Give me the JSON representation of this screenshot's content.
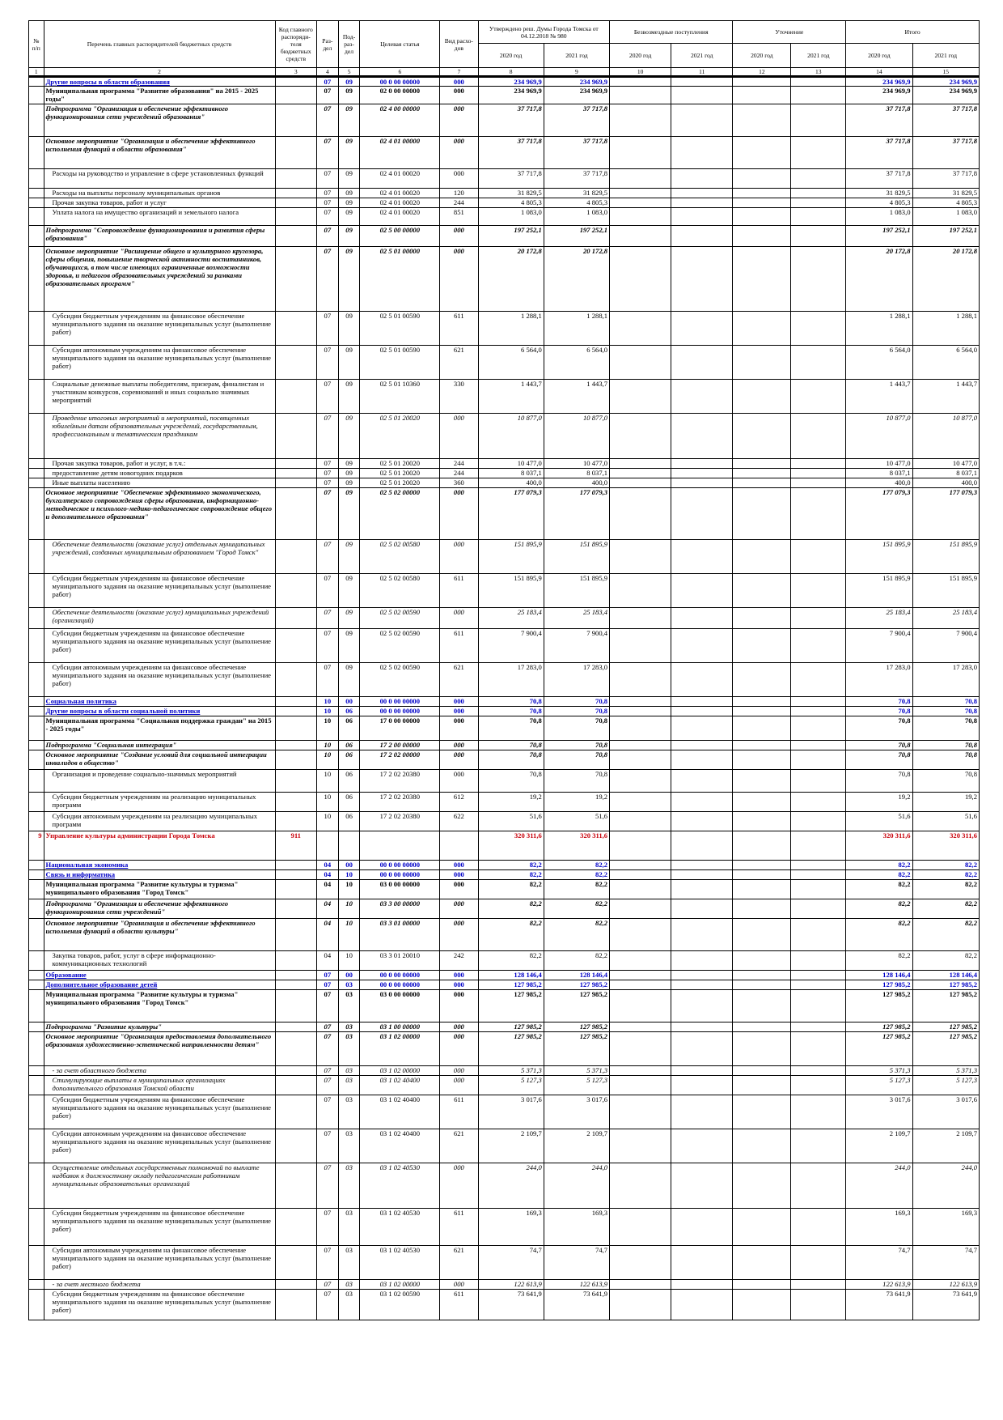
{
  "header": {
    "no": "№ п/п",
    "name": "Перечень главных распорядителей бюджетных средств",
    "code": "Код главного распоряди-теля бюджетных средств",
    "razdel": "Раз-дел",
    "podrazdel": "Под-раз-дел",
    "csr": "Целевая статья",
    "vr": "Вид расхо-дов",
    "approved": "Утверждено реш. Думы Города Томска от 04.12.2018 № 980",
    "free": "Безвозмездные поступления",
    "refine": "Уточнение",
    "total": "Итого",
    "y2020": "2020 год",
    "y2021": "2021 год",
    "colnums": [
      "1",
      "2",
      "3",
      "4",
      "5",
      "6",
      "7",
      "8",
      "9",
      "10",
      "11",
      "12",
      "13",
      "14",
      "15"
    ]
  },
  "rows": [
    {
      "s": "blue",
      "n": "",
      "name": "Другие вопросы в области образования",
      "code": "",
      "rz": "07",
      "pr": "09",
      "cs": "00 0 00 00000",
      "vr": "000",
      "a20": "234 969,9",
      "a21": "234 969,9",
      "t20": "234 969,9",
      "t21": "234 969,9",
      "h": 12
    },
    {
      "s": "b",
      "n": "",
      "name": "Муниципальная программа \"Развитие образования\" на 2015 - 2025 годы\"",
      "code": "",
      "rz": "07",
      "pr": "09",
      "cs": "02 0 00 00000",
      "vr": "000",
      "a20": "234 969,9",
      "a21": "234 969,9",
      "t20": "234 969,9",
      "t21": "234 969,9",
      "h": 22
    },
    {
      "s": "bi",
      "n": "",
      "name": "Подпрограмма \"Организация и обеспечение эффективного функционирования сети учреждений образования\"",
      "code": "",
      "rz": "07",
      "pr": "09",
      "cs": "02 4 00 00000",
      "vr": "000",
      "a20": "37 717,8",
      "a21": "37 717,8",
      "t20": "37 717,8",
      "t21": "37 717,8",
      "h": 40
    },
    {
      "s": "bi",
      "n": "",
      "name": "Основное мероприятие \"Организация и обеспечение эффективного исполнения функций в области образования\"",
      "code": "",
      "rz": "07",
      "pr": "09",
      "cs": "02 4 01 00000",
      "vr": "000",
      "a20": "37 717,8",
      "a21": "37 717,8",
      "t20": "37 717,8",
      "t21": "37 717,8",
      "h": 40
    },
    {
      "s": "",
      "n": "",
      "name": "Расходы на руководство и управление в сфере установленных функций",
      "code": "",
      "rz": "07",
      "pr": "09",
      "cs": "02 4 01 00020",
      "vr": "000",
      "a20": "37 717,8",
      "a21": "37 717,8",
      "t20": "37 717,8",
      "t21": "37 717,8",
      "h": 24
    },
    {
      "s": "",
      "n": "",
      "name": "Расходы на выплаты персоналу муниципальных органов",
      "code": "",
      "rz": "07",
      "pr": "09",
      "cs": "02 4 01 00020",
      "vr": "120",
      "a20": "31 829,5",
      "a21": "31 829,5",
      "t20": "31 829,5",
      "t21": "31 829,5",
      "h": 12
    },
    {
      "s": "",
      "n": "",
      "name": "Прочая закупка товаров, работ и услуг",
      "code": "",
      "rz": "07",
      "pr": "09",
      "cs": "02 4 01 00020",
      "vr": "244",
      "a20": "4 805,3",
      "a21": "4 805,3",
      "t20": "4 805,3",
      "t21": "4 805,3",
      "h": 12
    },
    {
      "s": "",
      "n": "",
      "name": "Уплата налога на имущество организаций и земельного налога",
      "code": "",
      "rz": "07",
      "pr": "09",
      "cs": "02 4 01 00020",
      "vr": "851",
      "a20": "1 083,0",
      "a21": "1 083,0",
      "t20": "1 083,0",
      "t21": "1 083,0",
      "h": 22
    },
    {
      "s": "bi",
      "n": "",
      "name": "Подпрограмма \"Сопровождение функционирования и развития сферы образования\"",
      "code": "",
      "rz": "07",
      "pr": "09",
      "cs": "02 5 00 00000",
      "vr": "000",
      "a20": "197 252,1",
      "a21": "197 252,1",
      "t20": "197 252,1",
      "t21": "197 252,1",
      "h": 26
    },
    {
      "s": "bi",
      "n": "",
      "name": "Основное мероприятие \"Расширение общего и культурного кругозора, сферы общения, повышение творческой активности воспитанников, обучающихся, в том числе имеющих ограниченные возможности здоровья, и педагогов образовательных учреждений за рамками образовательных программ\"",
      "code": "",
      "rz": "07",
      "pr": "09",
      "cs": "02 5 01 00000",
      "vr": "000",
      "a20": "20 172,8",
      "a21": "20 172,8",
      "t20": "20 172,8",
      "t21": "20 172,8",
      "h": 80
    },
    {
      "s": "",
      "n": "",
      "name": "Субсидии бюджетным учреждениям на финансовое обеспечение муниципального задания на оказание муниципальных услуг (выполнение работ)",
      "code": "",
      "rz": "07",
      "pr": "09",
      "cs": "02 5 01 00590",
      "vr": "611",
      "a20": "1 288,1",
      "a21": "1 288,1",
      "t20": "1 288,1",
      "t21": "1 288,1",
      "h": 42
    },
    {
      "s": "",
      "n": "",
      "name": "Субсидии автономным учреждениям на финансовое обеспечение муниципального задания на оказание муниципальных услуг (выполнение работ)",
      "code": "",
      "rz": "07",
      "pr": "09",
      "cs": "02 5 01 00590",
      "vr": "621",
      "a20": "6 564,0",
      "a21": "6 564,0",
      "t20": "6 564,0",
      "t21": "6 564,0",
      "h": 42
    },
    {
      "s": "",
      "n": "",
      "name": "Социальные денежные выплаты победителям, призерам, финалистам и участникам конкурсов, соревнований и иных социально значимых мероприятий",
      "code": "",
      "rz": "07",
      "pr": "09",
      "cs": "02 5 01 10360",
      "vr": "330",
      "a20": "1 443,7",
      "a21": "1 443,7",
      "t20": "1 443,7",
      "t21": "1 443,7",
      "h": 42
    },
    {
      "s": "i",
      "n": "",
      "name": "Проведение итоговых мероприятий и мероприятий, посвященных юбилейным датам образовательных учреждений, государственным, профессиональным и тематическим праздникам",
      "code": "",
      "rz": "07",
      "pr": "09",
      "cs": "02 5 01 20020",
      "vr": "000",
      "a20": "10 877,0",
      "a21": "10 877,0",
      "t20": "10 877,0",
      "t21": "10 877,0",
      "h": 56
    },
    {
      "s": "",
      "n": "",
      "name": "Прочая закупка товаров, работ и услуг, в т.ч.:",
      "code": "",
      "rz": "07",
      "pr": "09",
      "cs": "02 5 01 20020",
      "vr": "244",
      "a20": "10 477,0",
      "a21": "10 477,0",
      "t20": "10 477,0",
      "t21": "10 477,0",
      "h": 12
    },
    {
      "s": "",
      "n": "",
      "name": "предоставление детям новогодних подарков",
      "code": "",
      "rz": "07",
      "pr": "09",
      "cs": "02 5 01 20020",
      "vr": "244",
      "a20": "8 037,1",
      "a21": "8 037,1",
      "t20": "8 037,1",
      "t21": "8 037,1",
      "h": 12
    },
    {
      "s": "",
      "n": "",
      "name": "Иные выплаты населению",
      "code": "",
      "rz": "07",
      "pr": "09",
      "cs": "02 5 01 20020",
      "vr": "360",
      "a20": "400,0",
      "a21": "400,0",
      "t20": "400,0",
      "t21": "400,0",
      "h": 12
    },
    {
      "s": "bi",
      "n": "",
      "name": "Основное мероприятие \"Обеспечение эффективного экономического, бухгалтерского сопровождения сферы образования, информационно-методическое и психолого-медико-педагогическое сопровождение общего и дополнительного образования\"",
      "code": "",
      "rz": "07",
      "pr": "09",
      "cs": "02 5 02 00000",
      "vr": "000",
      "a20": "177 079,3",
      "a21": "177 079,3",
      "t20": "177 079,3",
      "t21": "177 079,3",
      "h": 64
    },
    {
      "s": "i",
      "n": "",
      "name": "Обеспечение деятельности (оказание услуг) отдельных муниципальных учреждений, созданных муниципальным образованием \"Город Томск\"",
      "code": "",
      "rz": "07",
      "pr": "09",
      "cs": "02 5 02 00580",
      "vr": "000",
      "a20": "151 895,9",
      "a21": "151 895,9",
      "t20": "151 895,9",
      "t21": "151 895,9",
      "h": 42
    },
    {
      "s": "",
      "n": "",
      "name": "Субсидии бюджетным учреждениям на финансовое обеспечение муниципального задания на оказание муниципальных услуг (выполнение работ)",
      "code": "",
      "rz": "07",
      "pr": "09",
      "cs": "02 5 02 00580",
      "vr": "611",
      "a20": "151 895,9",
      "a21": "151 895,9",
      "t20": "151 895,9",
      "t21": "151 895,9",
      "h": 42
    },
    {
      "s": "i",
      "n": "",
      "name": "Обеспечение деятельности (оказание услуг) муниципальных учреждений (организаций)",
      "code": "",
      "rz": "07",
      "pr": "09",
      "cs": "02 5 02 00590",
      "vr": "000",
      "a20": "25 183,4",
      "a21": "25 183,4",
      "t20": "25 183,4",
      "t21": "25 183,4",
      "h": 26
    },
    {
      "s": "",
      "n": "",
      "name": "Субсидии бюджетным учреждениям на финансовое обеспечение муниципального задания на оказание муниципальных услуг (выполнение работ)",
      "code": "",
      "rz": "07",
      "pr": "09",
      "cs": "02 5 02 00590",
      "vr": "611",
      "a20": "7 900,4",
      "a21": "7 900,4",
      "t20": "7 900,4",
      "t21": "7 900,4",
      "h": 42
    },
    {
      "s": "",
      "n": "",
      "name": "Субсидии автономным учреждениям на финансовое обеспечение муниципального задания на оказание муниципальных услуг (выполнение работ)",
      "code": "",
      "rz": "07",
      "pr": "09",
      "cs": "02 5 02 00590",
      "vr": "621",
      "a20": "17 283,0",
      "a21": "17 283,0",
      "t20": "17 283,0",
      "t21": "17 283,0",
      "h": 42
    },
    {
      "s": "blue",
      "n": "",
      "name": "Социальная политика",
      "code": "",
      "rz": "10",
      "pr": "00",
      "cs": "00 0 00 00000",
      "vr": "000",
      "a20": "70,8",
      "a21": "70,8",
      "t20": "70,8",
      "t21": "70,8",
      "h": 12
    },
    {
      "s": "blue",
      "n": "",
      "name": "Другие вопросы в области социальной политики",
      "code": "",
      "rz": "10",
      "pr": "06",
      "cs": "00 0 00 00000",
      "vr": "000",
      "a20": "70,8",
      "a21": "70,8",
      "t20": "70,8",
      "t21": "70,8",
      "h": 12
    },
    {
      "s": "b",
      "n": "",
      "name": "Муниципальная программа \"Социальная поддержка граждан\" на 2015 - 2025 годы\"",
      "code": "",
      "rz": "10",
      "pr": "06",
      "cs": "17 0 00 00000",
      "vr": "000",
      "a20": "70,8",
      "a21": "70,8",
      "t20": "70,8",
      "t21": "70,8",
      "h": 30
    },
    {
      "s": "bi",
      "n": "",
      "name": "Подпрограмма \"Социальная интеграция\"",
      "code": "",
      "rz": "10",
      "pr": "06",
      "cs": "17 2 00 00000",
      "vr": "000",
      "a20": "70,8",
      "a21": "70,8",
      "t20": "70,8",
      "t21": "70,8",
      "h": 12
    },
    {
      "s": "bi",
      "n": "",
      "name": "Основное мероприятие \"Создание условий для социальной интеграции инвалидов в общество\"",
      "code": "",
      "rz": "10",
      "pr": "06",
      "cs": "17 2 02 00000",
      "vr": "000",
      "a20": "70,8",
      "a21": "70,8",
      "t20": "70,8",
      "t21": "70,8",
      "h": 24
    },
    {
      "s": "",
      "n": "",
      "name": "Организация и проведение социально-значимых мероприятий",
      "code": "",
      "rz": "10",
      "pr": "06",
      "cs": "17 2 02 20380",
      "vr": "000",
      "a20": "70,8",
      "a21": "70,8",
      "t20": "70,8",
      "t21": "70,8",
      "h": 28
    },
    {
      "s": "",
      "n": "",
      "name": "Субсидии бюджетным учреждениям на реализацию муниципальных программ",
      "code": "",
      "rz": "10",
      "pr": "06",
      "cs": "17 2 02 20380",
      "vr": "612",
      "a20": "19,2",
      "a21": "19,2",
      "t20": "19,2",
      "t21": "19,2",
      "h": 24
    },
    {
      "s": "",
      "n": "",
      "name": "Субсидии автономным учреждениям на реализацию муниципальных программ",
      "code": "",
      "rz": "10",
      "pr": "06",
      "cs": "17 2 02 20380",
      "vr": "622",
      "a20": "51,6",
      "a21": "51,6",
      "t20": "51,6",
      "t21": "51,6",
      "h": 24
    },
    {
      "s": "red",
      "n": "9",
      "name": "Управление культуры администрации Города Томска",
      "code": "911",
      "rz": "",
      "pr": "",
      "cs": "",
      "vr": "",
      "a20": "320 311,6",
      "a21": "320 311,6",
      "t20": "320 311,6",
      "t21": "320 311,6",
      "h": 36
    },
    {
      "s": "blue",
      "n": "",
      "name": "Национальная экономика",
      "code": "",
      "rz": "04",
      "pr": "00",
      "cs": "00 0 00 00000",
      "vr": "000",
      "a20": "82,2",
      "a21": "82,2",
      "t20": "82,2",
      "t21": "82,2",
      "h": 12
    },
    {
      "s": "blue",
      "n": "",
      "name": "Связь и информатика",
      "code": "",
      "rz": "04",
      "pr": "10",
      "cs": "00 0 00 00000",
      "vr": "000",
      "a20": "82,2",
      "a21": "82,2",
      "t20": "82,2",
      "t21": "82,2",
      "h": 12
    },
    {
      "s": "b",
      "n": "",
      "name": "Муниципальная программа \"Развитие культуры и туризма\" муниципального образования \"Город Томск\"",
      "code": "",
      "rz": "04",
      "pr": "10",
      "cs": "03 0 00 00000",
      "vr": "000",
      "a20": "82,2",
      "a21": "82,2",
      "t20": "82,2",
      "t21": "82,2",
      "h": 24
    },
    {
      "s": "bi",
      "n": "",
      "name": "Подпрограмма \"Организация и обеспечение эффективного функционирования сети учреждений\"",
      "code": "",
      "rz": "04",
      "pr": "10",
      "cs": "03 3 00 00000",
      "vr": "000",
      "a20": "82,2",
      "a21": "82,2",
      "t20": "82,2",
      "t21": "82,2",
      "h": 24
    },
    {
      "s": "bi",
      "n": "",
      "name": "Основное мероприятие \"Организация и обеспечение эффективного исполнения функций в области культуры\"",
      "code": "",
      "rz": "04",
      "pr": "10",
      "cs": "03 3 01 00000",
      "vr": "000",
      "a20": "82,2",
      "a21": "82,2",
      "t20": "82,2",
      "t21": "82,2",
      "h": 40
    },
    {
      "s": "",
      "n": "",
      "name": "Закупка товаров, работ, услуг в сфере информационно-коммуникационных технологий",
      "code": "",
      "rz": "04",
      "pr": "10",
      "cs": "03 3 01 20010",
      "vr": "242",
      "a20": "82,2",
      "a21": "82,2",
      "t20": "82,2",
      "t21": "82,2",
      "h": 24
    },
    {
      "s": "blue",
      "n": "",
      "name": "Образование",
      "code": "",
      "rz": "07",
      "pr": "00",
      "cs": "00 0 00 00000",
      "vr": "000",
      "a20": "128 146,4",
      "a21": "128 146,4",
      "t20": "128 146,4",
      "t21": "128 146,4",
      "h": 12
    },
    {
      "s": "blue",
      "n": "",
      "name": "Дополнительное образование детей",
      "code": "",
      "rz": "07",
      "pr": "03",
      "cs": "00 0 00 00000",
      "vr": "000",
      "a20": "127 985,2",
      "a21": "127 985,2",
      "t20": "127 985,2",
      "t21": "127 985,2",
      "h": 12
    },
    {
      "s": "b",
      "n": "",
      "name": "Муниципальная программа \"Развитие культуры и туризма\" муниципального образования \"Город Томск\"",
      "code": "",
      "rz": "07",
      "pr": "03",
      "cs": "03 0 00 00000",
      "vr": "000",
      "a20": "127 985,2",
      "a21": "127 985,2",
      "t20": "127 985,2",
      "t21": "127 985,2",
      "h": 40
    },
    {
      "s": "bi",
      "n": "",
      "name": "Подпрограмма \"Развитие культуры\"",
      "code": "",
      "rz": "07",
      "pr": "03",
      "cs": "03 1 00 00000",
      "vr": "000",
      "a20": "127 985,2",
      "a21": "127 985,2",
      "t20": "127 985,2",
      "t21": "127 985,2",
      "h": 12
    },
    {
      "s": "bi",
      "n": "",
      "name": "Основное мероприятие \"Организация предоставления дополнительного образования художественно-эстетической направленности детям\"",
      "code": "",
      "rz": "07",
      "pr": "03",
      "cs": "03 1 02 00000",
      "vr": "000",
      "a20": "127 985,2",
      "a21": "127 985,2",
      "t20": "127 985,2",
      "t21": "127 985,2",
      "h": 42
    },
    {
      "s": "i",
      "n": "",
      "name": "- за счет областного бюджета",
      "code": "",
      "rz": "07",
      "pr": "03",
      "cs": "03 1 02 00000",
      "vr": "000",
      "a20": "5 371,3",
      "a21": "5 371,3",
      "t20": "5 371,3",
      "t21": "5 371,3",
      "h": 12
    },
    {
      "s": "i",
      "n": "",
      "name": "Стимулирующие выплаты в муниципальных организациях дополнительного образования Томской области",
      "code": "",
      "rz": "07",
      "pr": "03",
      "cs": "03 1 02 40400",
      "vr": "000",
      "a20": "5 127,3",
      "a21": "5 127,3",
      "t20": "5 127,3",
      "t21": "5 127,3",
      "h": 24
    },
    {
      "s": "",
      "n": "",
      "name": "Субсидии бюджетным учреждениям на финансовое обеспечение муниципального задания на оказание муниципальных услуг (выполнение работ)",
      "code": "",
      "rz": "07",
      "pr": "03",
      "cs": "03 1 02 40400",
      "vr": "611",
      "a20": "3 017,6",
      "a21": "3 017,6",
      "t20": "3 017,6",
      "t21": "3 017,6",
      "h": 42
    },
    {
      "s": "",
      "n": "",
      "name": "Субсидии автономным учреждениям на финансовое обеспечение муниципального задания на оказание муниципальных услуг (выполнение работ)",
      "code": "",
      "rz": "07",
      "pr": "03",
      "cs": "03 1 02 40400",
      "vr": "621",
      "a20": "2 109,7",
      "a21": "2 109,7",
      "t20": "2 109,7",
      "t21": "2 109,7",
      "h": 42
    },
    {
      "s": "i",
      "n": "",
      "name": "Осуществление отдельных государственных полномочий по выплате надбавок к должностному окладу педагогическим работникам муниципальных образовательных организаций",
      "code": "",
      "rz": "07",
      "pr": "03",
      "cs": "03 1 02 40530",
      "vr": "000",
      "a20": "244,0",
      "a21": "244,0",
      "t20": "244,0",
      "t21": "244,0",
      "h": 56
    },
    {
      "s": "",
      "n": "",
      "name": "Субсидии бюджетным учреждениям на финансовое обеспечение муниципального задания на оказание муниципальных услуг (выполнение работ)",
      "code": "",
      "rz": "07",
      "pr": "03",
      "cs": "03 1 02 40530",
      "vr": "611",
      "a20": "169,3",
      "a21": "169,3",
      "t20": "169,3",
      "t21": "169,3",
      "h": 46
    },
    {
      "s": "",
      "n": "",
      "name": "Субсидии автономным учреждениям на финансовое обеспечение муниципального задания на оказание муниципальных услуг (выполнение работ)",
      "code": "",
      "rz": "07",
      "pr": "03",
      "cs": "03 1 02 40530",
      "vr": "621",
      "a20": "74,7",
      "a21": "74,7",
      "t20": "74,7",
      "t21": "74,7",
      "h": 42
    },
    {
      "s": "i",
      "n": "",
      "name": "- за счет местного бюджета",
      "code": "",
      "rz": "07",
      "pr": "03",
      "cs": "03 1 02 00000",
      "vr": "000",
      "a20": "122 613,9",
      "a21": "122 613,9",
      "t20": "122 613,9",
      "t21": "122 613,9",
      "h": 12
    },
    {
      "s": "",
      "n": "",
      "name": "Субсидии бюджетным учреждениям на финансовое обеспечение муниципального задания на оказание муниципальных услуг (выполнение работ)",
      "code": "",
      "rz": "07",
      "pr": "03",
      "cs": "03 1 02 00590",
      "vr": "611",
      "a20": "73 641,9",
      "a21": "73 641,9",
      "t20": "73 641,9",
      "t21": "73 641,9",
      "h": 38
    }
  ]
}
